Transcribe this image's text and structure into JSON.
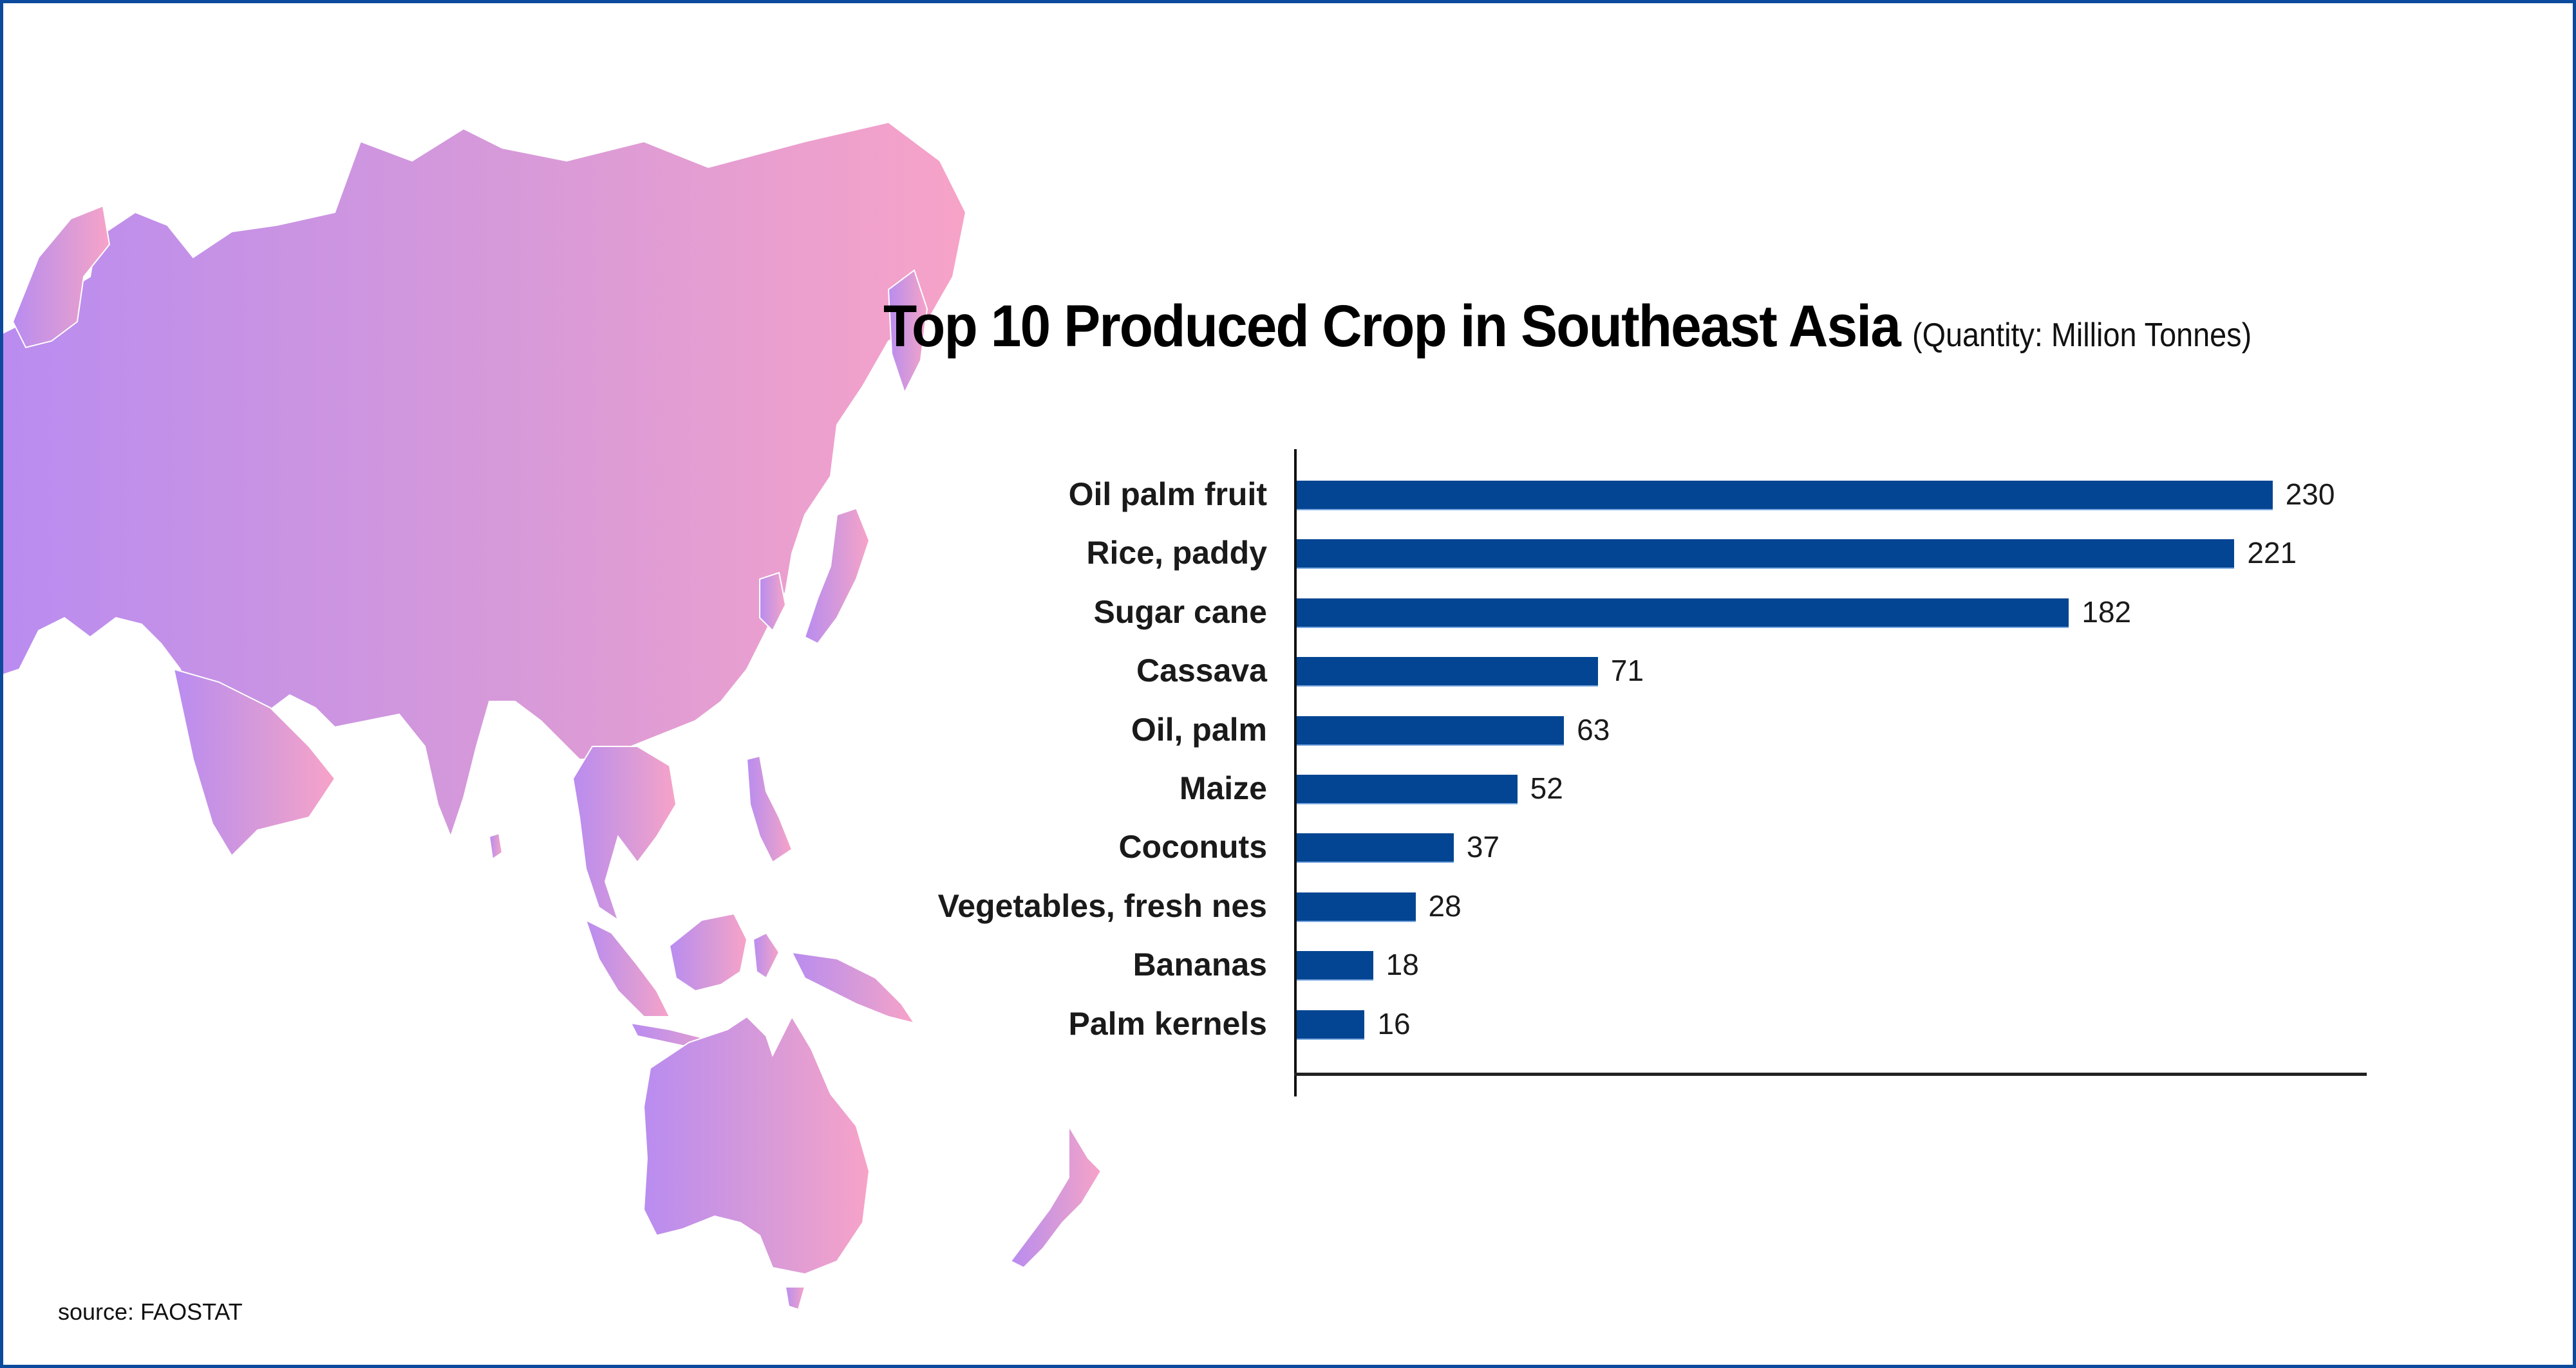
{
  "title": "Top 10 Produced Crop in Southeast Asia",
  "subtitle": "(Quantity: Million Tonnes)",
  "source": "source: FAOSTAT",
  "colors": {
    "bar": "#034592",
    "frame": "#0b4a9c",
    "map_gradient_start": "#b98cf0",
    "map_gradient_end": "#f7a3c8"
  },
  "chart_data": {
    "type": "bar",
    "orientation": "horizontal",
    "title": "Top 10 Produced Crop in Southeast Asia",
    "subtitle": "(Quantity: Million Tonnes)",
    "xlabel": "",
    "ylabel": "",
    "categories": [
      "Oil palm fruit",
      "Rice, paddy",
      "Sugar cane",
      "Cassava",
      "Oil, palm",
      "Maize",
      "Coconuts",
      "Vegetables, fresh nes",
      "Bananas",
      "Palm kernels"
    ],
    "values": [
      230,
      221,
      182,
      71,
      63,
      52,
      37,
      28,
      18,
      16
    ],
    "value_labels": [
      "230",
      "221",
      "182",
      "71",
      "63",
      "52",
      "37",
      "28",
      "18",
      "16"
    ],
    "unit": "Million Tonnes",
    "xlim": [
      0,
      250
    ],
    "grid": false,
    "legend": null,
    "data_labels": true,
    "source": "FAOSTAT"
  }
}
